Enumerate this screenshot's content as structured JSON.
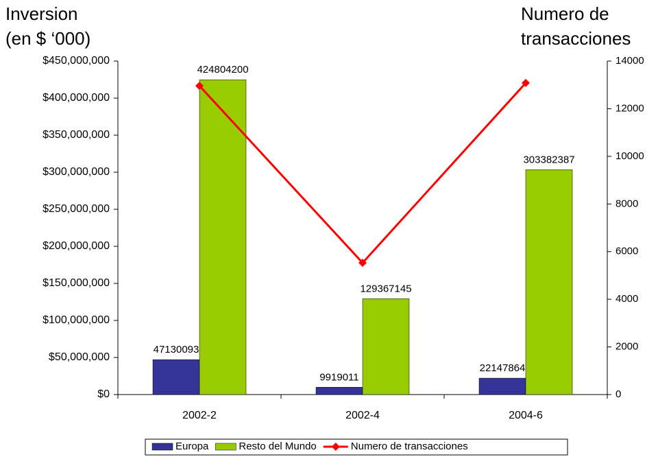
{
  "chart_data": {
    "type": "bar",
    "ylabel": [
      "Inversion",
      "(en $ ‘000)"
    ],
    "y2label": [
      "Numero de",
      "transacciones"
    ],
    "categories": [
      "2002-2",
      "2002-4",
      "2004-6"
    ],
    "series": [
      {
        "name": "Europa",
        "color": "#333399",
        "values": [
          47130093,
          9919011,
          22147864
        ]
      },
      {
        "name": "Resto del Mundo",
        "color": "#99cc00",
        "values": [
          424804200,
          129367145,
          303382387
        ]
      },
      {
        "name": "Numero de transacciones",
        "color": "#ff0000",
        "type": "line",
        "axis": "y2",
        "values": [
          12960,
          5530,
          13080
        ]
      }
    ],
    "ylim": [
      0,
      450000000
    ],
    "yticks": [
      {
        "value": 0,
        "label": "$0"
      },
      {
        "value": 50000000,
        "label": "$50,000,000"
      },
      {
        "value": 100000000,
        "label": "$100,000,000"
      },
      {
        "value": 150000000,
        "label": "$150,000,000"
      },
      {
        "value": 200000000,
        "label": "$200,000,000"
      },
      {
        "value": 250000000,
        "label": "$250,000,000"
      },
      {
        "value": 300000000,
        "label": "$300,000,000"
      },
      {
        "value": 350000000,
        "label": "$350,000,000"
      },
      {
        "value": 400000000,
        "label": "$400,000,000"
      },
      {
        "value": 450000000,
        "label": "$450,000,000"
      }
    ],
    "y2lim": [
      0,
      14000
    ],
    "y2ticks": [
      0,
      2000,
      4000,
      6000,
      8000,
      10000,
      12000,
      14000
    ],
    "legend": "bottom"
  }
}
